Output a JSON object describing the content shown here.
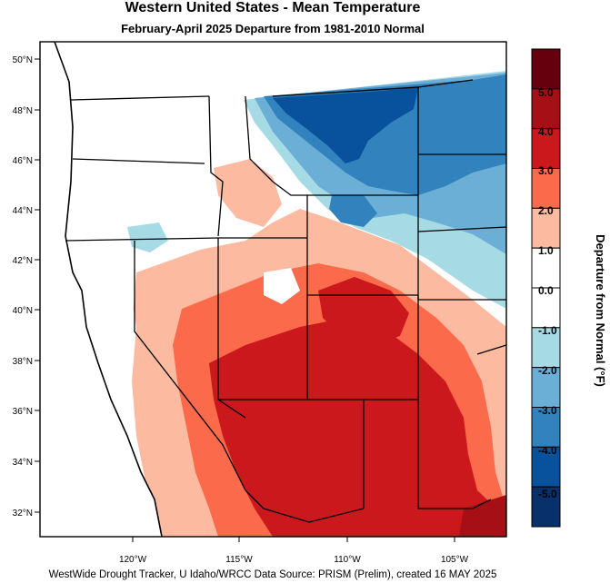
{
  "header": {
    "title": "Western United States - Mean Temperature",
    "subtitle": "February-April 2025  Departure from 1981-2010 Normal"
  },
  "footer": {
    "credit": "WestWide Drought Tracker, U Idaho/WRCC Data Source: PRISM (Prelim), created 16 MAY 2025"
  },
  "axes": {
    "lat_labels": [
      "50°N",
      "48°N",
      "46°N",
      "44°N",
      "42°N",
      "40°N",
      "38°N",
      "36°N",
      "34°N",
      "32°N"
    ],
    "lon_labels": [
      "120°W",
      "115°W",
      "110°W",
      "105°W"
    ]
  },
  "colorbar": {
    "title": "Departure from Normal (°F)",
    "labels": [
      "5.0",
      "4.0",
      "3.0",
      "2.0",
      "1.0",
      "0.0",
      "-1.0",
      "-2.0",
      "-3.0",
      "-4.0",
      "-5.0"
    ],
    "colors": [
      "#67000d",
      "#a50f15",
      "#cb181d",
      "#fb6a4a",
      "#fcbba1",
      "#ffffff",
      "#ffffff",
      "#a6dbe6",
      "#6baed6",
      "#3182bd",
      "#08519c",
      "#08306b"
    ]
  },
  "map_colors": {
    "ocean": "#ffffff",
    "neutral": "#ffffff",
    "warm_light": "#fcbba1",
    "warm_mid": "#fb6a4a",
    "warm_strong": "#cb181d",
    "cool_light": "#a6dbe6",
    "cool_mid": "#6baed6",
    "cool_strong": "#3182bd",
    "cool_deep": "#08519c"
  }
}
